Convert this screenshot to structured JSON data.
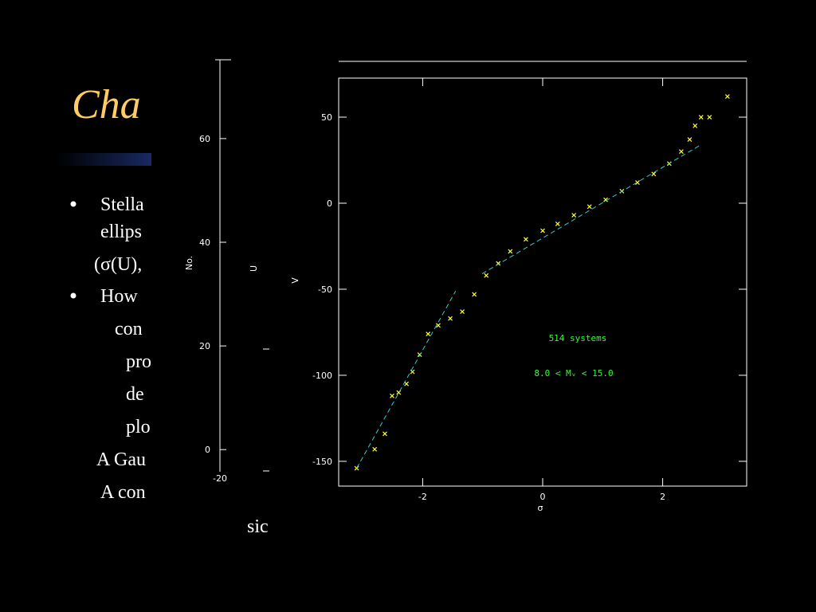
{
  "slide": {
    "title": "Cha",
    "bullets": [
      "Stella",
      "ellips",
      "(σ(U),",
      "How",
      "con",
      "pro",
      "de",
      "plo",
      "A Gau",
      "A con",
      "sic"
    ]
  },
  "chart_data": [
    {
      "type": "histogram",
      "y_label": "No.",
      "ylim": [
        -5.5,
        75.2
      ],
      "yticks": [
        0,
        20,
        40,
        60
      ],
      "xlim": [
        -20,
        60
      ],
      "xticks": [
        -20
      ]
    },
    {
      "type": "scatter",
      "y_label": "U"
    },
    {
      "type": "scatter",
      "x_label": "σ",
      "y_label": "V",
      "xlim": [
        -3.4,
        3.4
      ],
      "xticks": [
        -2,
        0,
        2
      ],
      "ylim": [
        -164.4,
        72.7
      ],
      "yticks": [
        50,
        0,
        -50,
        -100,
        -150
      ],
      "annotations": [
        "514 systems",
        "8.0 < Mᵥ < 15.0"
      ],
      "series": [
        {
          "color": "#ffff33",
          "marker": "x",
          "x": [
            -3.1,
            -2.8,
            -2.63,
            -2.51,
            -2.4,
            -2.27,
            -2.17,
            -2.05,
            -1.91,
            -1.74,
            -1.54,
            -1.34,
            -1.14,
            -0.94,
            -0.74,
            -0.54,
            -0.28,
            0,
            0.25,
            0.52,
            0.78,
            1.05,
            1.32,
            1.58,
            1.85,
            2.11,
            2.31,
            2.45,
            2.54,
            2.64,
            2.78,
            3.08
          ],
          "values": [
            -154,
            -143,
            -134,
            -112,
            -110,
            -105,
            -98,
            -88,
            -76,
            -71,
            -67,
            -63,
            -53,
            -42,
            -35,
            -28,
            -21,
            -16,
            -12,
            -7,
            -2,
            2,
            7,
            12,
            17,
            23,
            30,
            37,
            45,
            50,
            50,
            62
          ]
        },
        {
          "color": "#33cccc",
          "style": "dashed",
          "x": [
            -3.1,
            -1.45
          ],
          "values": [
            -154,
            -51
          ]
        },
        {
          "color": "#33cccc",
          "style": "dashed",
          "x": [
            -1.01,
            2.64
          ],
          "values": [
            -41,
            34
          ]
        }
      ]
    }
  ]
}
